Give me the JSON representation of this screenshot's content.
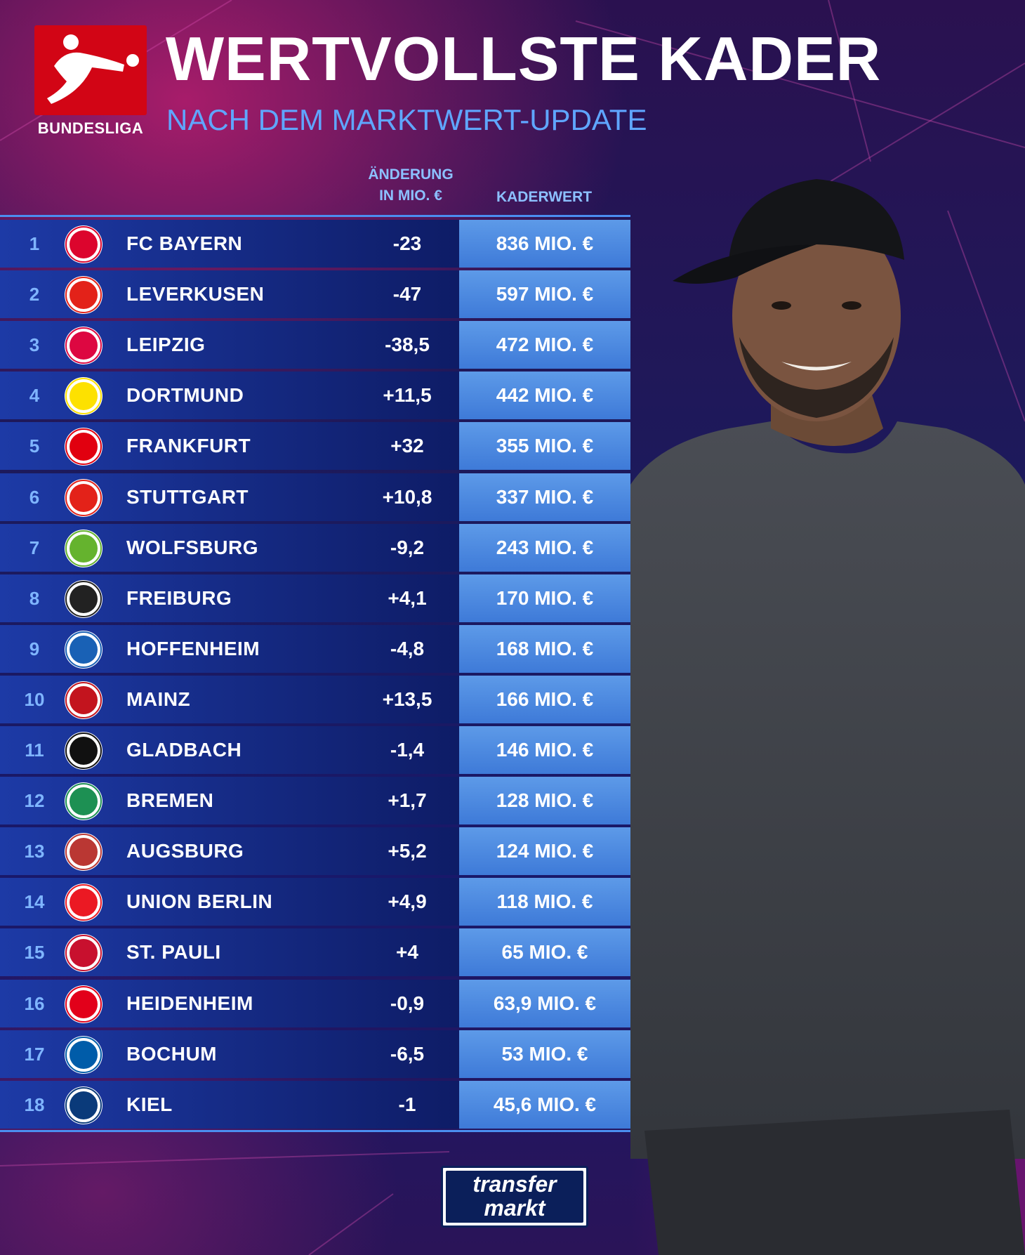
{
  "header": {
    "logo_word": "BUNDESLIGA",
    "title": "WERTVOLLSTE KADER",
    "subtitle": "NACH DEM MARKTWERT-UPDATE"
  },
  "columns": {
    "change_line1": "ÄNDERUNG",
    "change_line2": "IN MIO. €",
    "value": "KADERWERT"
  },
  "rows": [
    {
      "rank": "1",
      "team": "FC BAYERN",
      "change": "-23",
      "value": "836 MIO. €",
      "crest": "bayern-crest",
      "color": "#dc052d"
    },
    {
      "rank": "2",
      "team": "LEVERKUSEN",
      "change": "-47",
      "value": "597 MIO. €",
      "crest": "leverkusen-crest",
      "color": "#e32219"
    },
    {
      "rank": "3",
      "team": "LEIPZIG",
      "change": "-38,5",
      "value": "472 MIO. €",
      "crest": "leipzig-crest",
      "color": "#dd0741"
    },
    {
      "rank": "4",
      "team": "DORTMUND",
      "change": "+11,5",
      "value": "442 MIO. €",
      "crest": "dortmund-crest",
      "color": "#fde100"
    },
    {
      "rank": "5",
      "team": "FRANKFURT",
      "change": "+32",
      "value": "355 MIO. €",
      "crest": "frankfurt-crest",
      "color": "#e1000f"
    },
    {
      "rank": "6",
      "team": "STUTTGART",
      "change": "+10,8",
      "value": "337 MIO. €",
      "crest": "stuttgart-crest",
      "color": "#e32219"
    },
    {
      "rank": "7",
      "team": "WOLFSBURG",
      "change": "-9,2",
      "value": "243 MIO. €",
      "crest": "wolfsburg-crest",
      "color": "#65b32e"
    },
    {
      "rank": "8",
      "team": "FREIBURG",
      "change": "+4,1",
      "value": "170 MIO. €",
      "crest": "freiburg-crest",
      "color": "#222222"
    },
    {
      "rank": "9",
      "team": "HOFFENHEIM",
      "change": "-4,8",
      "value": "168 MIO. €",
      "crest": "hoffenheim-crest",
      "color": "#1961b5"
    },
    {
      "rank": "10",
      "team": "MAINZ",
      "change": "+13,5",
      "value": "166 MIO. €",
      "crest": "mainz-crest",
      "color": "#c3141e"
    },
    {
      "rank": "11",
      "team": "GLADBACH",
      "change": "-1,4",
      "value": "146 MIO. €",
      "crest": "gladbach-crest",
      "color": "#111111"
    },
    {
      "rank": "12",
      "team": "BREMEN",
      "change": "+1,7",
      "value": "128 MIO. €",
      "crest": "bremen-crest",
      "color": "#1d9053"
    },
    {
      "rank": "13",
      "team": "AUGSBURG",
      "change": "+5,2",
      "value": "124 MIO. €",
      "crest": "augsburg-crest",
      "color": "#ba3733"
    },
    {
      "rank": "14",
      "team": "UNION BERLIN",
      "change": "+4,9",
      "value": "118 MIO. €",
      "crest": "union-crest",
      "color": "#eb1923"
    },
    {
      "rank": "15",
      "team": "ST. PAULI",
      "change": "+4",
      "value": "65 MIO. €",
      "crest": "stpauli-crest",
      "color": "#c8102e"
    },
    {
      "rank": "16",
      "team": "HEIDENHEIM",
      "change": "-0,9",
      "value": "63,9 MIO. €",
      "crest": "heidenheim-crest",
      "color": "#e2001a"
    },
    {
      "rank": "17",
      "team": "BOCHUM",
      "change": "-6,5",
      "value": "53 MIO. €",
      "crest": "bochum-crest",
      "color": "#005ca9"
    },
    {
      "rank": "18",
      "team": "KIEL",
      "change": "-1",
      "value": "45,6 MIO. €",
      "crest": "kiel-crest",
      "color": "#0a3a7a"
    }
  ],
  "footer": {
    "logo_line1": "transfer",
    "logo_line2": "markt"
  }
}
